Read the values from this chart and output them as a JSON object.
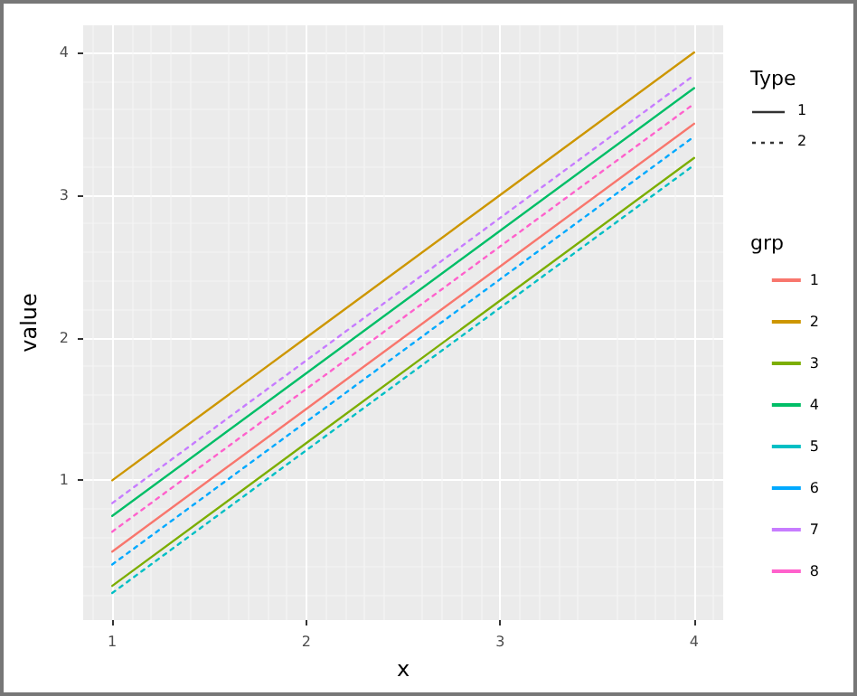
{
  "chart_data": {
    "type": "line",
    "xlabel": "x",
    "ylabel": "value",
    "legend_title": "grp",
    "legend": "right",
    "grid": true,
    "marker": "none",
    "x": [
      1,
      2,
      3,
      4
    ],
    "xlim": [
      0.85,
      4.15
    ],
    "xticks": [
      1,
      2,
      3,
      4
    ],
    "ylim": [
      0.02,
      4.19
    ],
    "yticks": [
      1,
      2,
      3,
      4
    ],
    "annotations": [
      "Type",
      "1",
      "2"
    ],
    "series": [
      {
        "name": "1",
        "color": "#f8766d",
        "line_style": "solid",
        "values": [
          0.5,
          1.5,
          2.5,
          3.5
        ]
      },
      {
        "name": "2",
        "color": "#cd9600",
        "line_style": "solid",
        "values": [
          1.0,
          2.0,
          3.0,
          4.0
        ]
      },
      {
        "name": "3",
        "color": "#7cae00",
        "line_style": "solid",
        "values": [
          0.26,
          1.26,
          2.26,
          3.26
        ]
      },
      {
        "name": "4",
        "color": "#00be67",
        "line_style": "solid",
        "values": [
          0.75,
          1.75,
          2.75,
          3.75
        ]
      },
      {
        "name": "5",
        "color": "#00bfc4",
        "line_style": "dotted",
        "values": [
          0.21,
          1.21,
          2.21,
          3.21
        ]
      },
      {
        "name": "6",
        "color": "#00a9ff",
        "line_style": "dotted",
        "values": [
          0.41,
          1.41,
          2.41,
          3.41
        ]
      },
      {
        "name": "7",
        "color": "#c77cff",
        "line_style": "dotted",
        "values": [
          0.84,
          1.84,
          2.84,
          3.84
        ]
      },
      {
        "name": "8",
        "color": "#ff61cc",
        "line_style": "dotted",
        "values": [
          0.64,
          1.64,
          2.64,
          3.64
        ]
      }
    ]
  }
}
